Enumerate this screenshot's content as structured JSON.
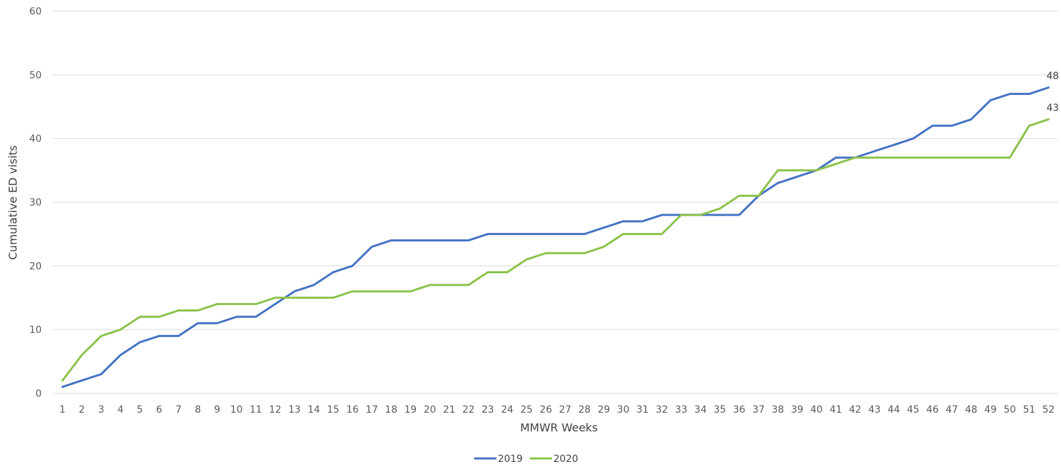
{
  "chart_data": {
    "type": "line",
    "xlabel": "MMWR Weeks",
    "ylabel": "Cumulative ED visits",
    "ylim": [
      0,
      60
    ],
    "yticks": [
      0,
      10,
      20,
      30,
      40,
      50,
      60
    ],
    "grid": true,
    "legend_position": "bottom",
    "x": [
      1,
      2,
      3,
      4,
      5,
      6,
      7,
      8,
      9,
      10,
      11,
      12,
      13,
      14,
      15,
      16,
      17,
      18,
      19,
      20,
      21,
      22,
      23,
      24,
      25,
      26,
      27,
      28,
      29,
      30,
      31,
      32,
      33,
      34,
      35,
      36,
      37,
      38,
      39,
      40,
      41,
      42,
      43,
      44,
      45,
      46,
      47,
      48,
      49,
      50,
      51,
      52
    ],
    "series": [
      {
        "name": "2019",
        "color": "#4472C4",
        "values": [
          1,
          2,
          3,
          6,
          8,
          9,
          9,
          11,
          11,
          12,
          12,
          14,
          16,
          17,
          19,
          20,
          23,
          24,
          24,
          24,
          24,
          24,
          25,
          25,
          25,
          25,
          25,
          25,
          26,
          27,
          27,
          28,
          28,
          28,
          28,
          28,
          31,
          33,
          34,
          35,
          37,
          37,
          38,
          39,
          40,
          42,
          42,
          43,
          46,
          47,
          47,
          48
        ],
        "end_label": "48"
      },
      {
        "name": "2020",
        "color": "#8BC34A",
        "values": [
          2,
          6,
          9,
          10,
          12,
          12,
          13,
          13,
          14,
          14,
          14,
          15,
          15,
          15,
          15,
          16,
          16,
          16,
          16,
          17,
          17,
          17,
          19,
          19,
          21,
          22,
          22,
          22,
          23,
          25,
          25,
          25,
          28,
          28,
          29,
          31,
          31,
          35,
          35,
          35,
          36,
          37,
          37,
          37,
          37,
          37,
          37,
          37,
          37,
          37,
          42,
          43
        ],
        "end_label": "43"
      }
    ]
  }
}
